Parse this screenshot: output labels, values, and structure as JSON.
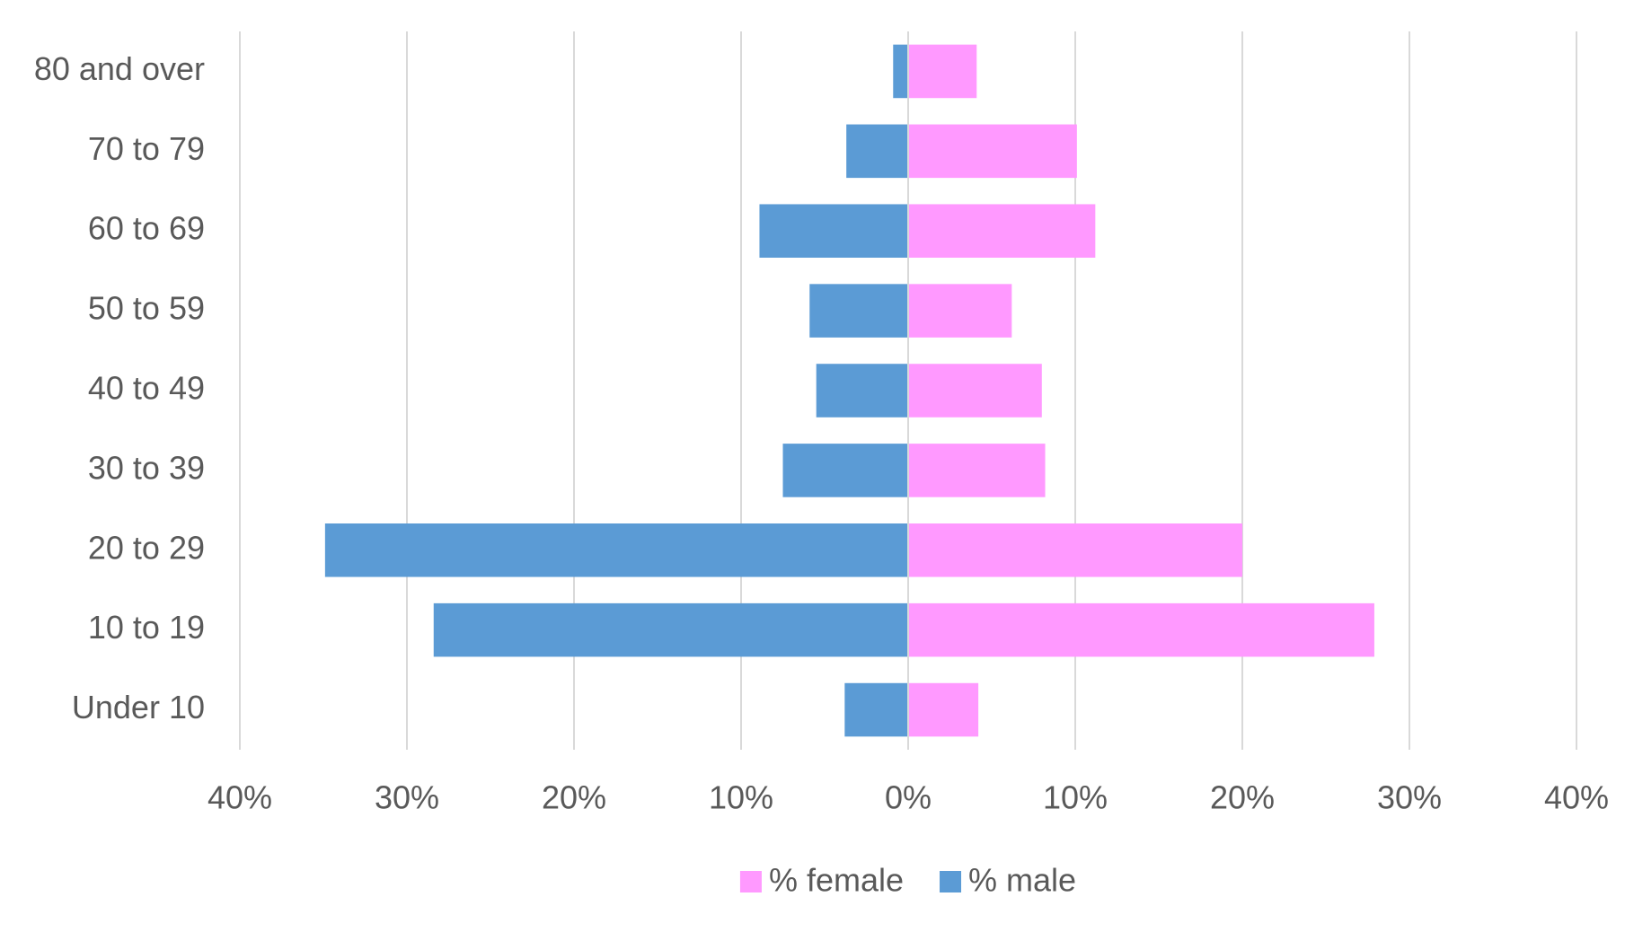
{
  "chart_data": {
    "type": "bar",
    "orientation": "horizontal",
    "categories": [
      "Under 10",
      "10 to 19",
      "20 to 29",
      "30 to 39",
      "40 to 49",
      "50 to 59",
      "60 to 69",
      "70 to 79",
      "80 and over"
    ],
    "series": [
      {
        "name": "% female",
        "color": "#ff99ff",
        "values": [
          4.2,
          27.9,
          20.0,
          8.2,
          8.0,
          6.2,
          11.2,
          10.1,
          4.1
        ]
      },
      {
        "name": "% male",
        "color": "#5b9bd5",
        "values": [
          -3.8,
          -28.4,
          -34.9,
          -7.5,
          -5.5,
          -5.9,
          -8.9,
          -3.7,
          -0.9
        ]
      }
    ],
    "xlim": [
      -40,
      40
    ],
    "xticks": [
      {
        "value": -40,
        "label": "40%"
      },
      {
        "value": -30,
        "label": "30%"
      },
      {
        "value": -20,
        "label": "20%"
      },
      {
        "value": -10,
        "label": "10%"
      },
      {
        "value": 0,
        "label": "0%"
      },
      {
        "value": 10,
        "label": "10%"
      },
      {
        "value": 20,
        "label": "20%"
      },
      {
        "value": 30,
        "label": "30%"
      },
      {
        "value": 40,
        "label": "40%"
      }
    ],
    "grid": true,
    "legend": "bottom"
  }
}
